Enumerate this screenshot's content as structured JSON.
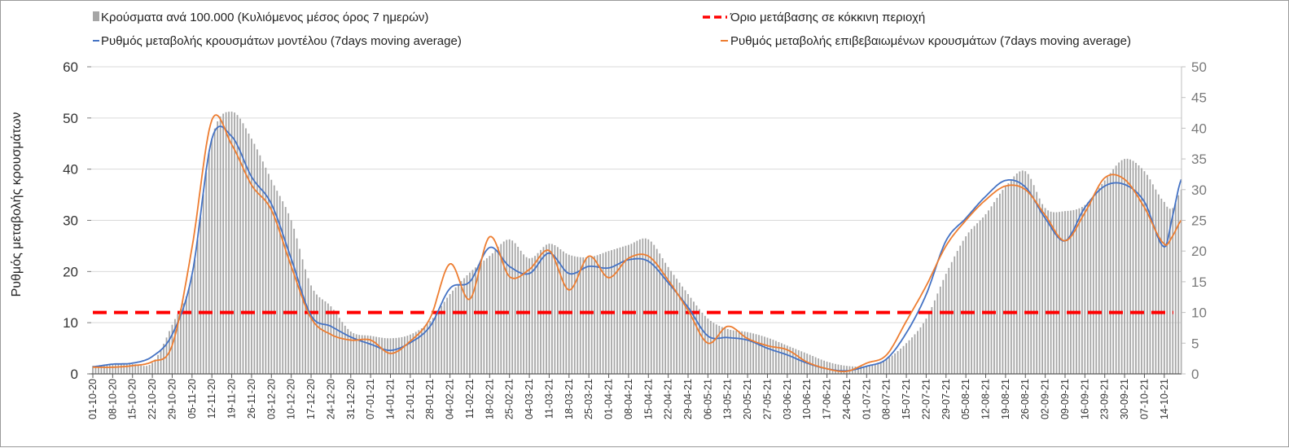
{
  "chart_data": {
    "type": "bar+line",
    "title": "",
    "ylabel": "Ρυθμός μεταβολής κρουσμάτων",
    "ylabel_right": "",
    "ylim": [
      0,
      60
    ],
    "ylim_right": [
      0,
      50
    ],
    "yticks": [
      "0",
      "10",
      "20",
      "30",
      "40",
      "50",
      "60"
    ],
    "yticks_right": [
      "0",
      "5",
      "10",
      "15",
      "20",
      "25",
      "30",
      "35",
      "40",
      "45",
      "50"
    ],
    "grid": true,
    "legend_position": "top",
    "x": [
      "01-10-20",
      "08-10-20",
      "15-10-20",
      "22-10-20",
      "29-10-20",
      "05-11-20",
      "12-11-20",
      "19-11-20",
      "26-11-20",
      "03-12-20",
      "10-12-20",
      "17-12-20",
      "24-12-20",
      "31-12-20",
      "07-01-21",
      "14-01-21",
      "21-01-21",
      "28-01-21",
      "04-02-21",
      "11-02-21",
      "18-02-21",
      "25-02-21",
      "04-03-21",
      "11-03-21",
      "18-03-21",
      "25-03-21",
      "01-04-21",
      "08-04-21",
      "15-04-21",
      "22-04-21",
      "29-04-21",
      "06-05-21",
      "13-05-21",
      "20-05-21",
      "27-05-21",
      "03-06-21",
      "10-06-21",
      "17-06-21",
      "24-06-21",
      "01-07-21",
      "08-07-21",
      "15-07-21",
      "22-07-21",
      "29-07-21",
      "05-08-21",
      "12-08-21",
      "19-08-21",
      "26-08-21",
      "02-09-21",
      "09-09-21",
      "16-09-21",
      "23-09-21",
      "30-09-21",
      "07-10-21",
      "14-10-21"
    ],
    "tail_days_after_last_label": [
      3,
      6
    ],
    "series": [
      {
        "name": "Κρούσματα ανά 100.000 (Κυλιόμενος μέσος όρος 7 ημερών)",
        "type": "bar",
        "axis": "right",
        "color": "#a6a6a6",
        "values": [
          1.3,
          1.5,
          1.6,
          1.8,
          8,
          16,
          38.3,
          42.7,
          38.3,
          31.6,
          25,
          14.4,
          11,
          6.9,
          6.2,
          5.8,
          6.4,
          8.6,
          13,
          16.5,
          19.2,
          21.9,
          18.8,
          21.2,
          19.4,
          19,
          20,
          21,
          21.9,
          17.4,
          13,
          9,
          7.3,
          6.8,
          5.9,
          4.6,
          3.3,
          2,
          1.3,
          1.3,
          2.4,
          5,
          9,
          16.3,
          22.4,
          26,
          30.5,
          33,
          27,
          26.5,
          27.5,
          31.5,
          35,
          33,
          28
        ],
        "tail": [
          27,
          30
        ]
      },
      {
        "name": "Όριο μετάβασης σε κόκκινη περιοχή",
        "type": "threshold",
        "axis": "right",
        "color": "#ff0000",
        "value": 10
      },
      {
        "name": "Ρυθμός μεταβολής κρουσμάτων μοντέλου (7days moving average)",
        "type": "line",
        "axis": "left",
        "color": "#4472c4",
        "values": [
          1.4,
          1.9,
          2.1,
          3.4,
          7.7,
          19.4,
          45.9,
          46.4,
          38.5,
          33.2,
          22.5,
          11.4,
          9.3,
          7.2,
          5.8,
          4.6,
          6.1,
          9.3,
          16.7,
          18,
          24.7,
          21,
          19.6,
          23.6,
          19.6,
          21,
          20.7,
          22.3,
          22,
          17.8,
          13,
          7.4,
          7.1,
          6.6,
          5,
          3.7,
          2.1,
          1.0,
          0.6,
          1.5,
          2.9,
          8,
          15.5,
          26,
          30.4,
          34.7,
          37.8,
          36.5,
          30.4,
          26,
          32.5,
          36.7,
          37,
          33.6,
          24.8
        ],
        "tail": [
          31,
          38
        ]
      },
      {
        "name": "Ρυθμός μεταβολής επιβεβαιωμένων κρουσμάτων (7days moving average)",
        "type": "line",
        "axis": "left",
        "color": "#ed7d31",
        "values": [
          1.3,
          1.3,
          1.6,
          2.4,
          5.6,
          24.7,
          49.6,
          44.8,
          36.9,
          32,
          21,
          10.9,
          7.7,
          6.6,
          6.6,
          4,
          6.4,
          10.9,
          21.5,
          14.6,
          26.8,
          19,
          20.4,
          24.1,
          16.4,
          23,
          18.8,
          22.6,
          23,
          18.3,
          12.4,
          6,
          9.3,
          6.9,
          5.5,
          4.7,
          2.3,
          1.0,
          0.5,
          2.1,
          3.7,
          10.3,
          17.2,
          25,
          30,
          34,
          36.7,
          36,
          31,
          26,
          31.5,
          38.3,
          38,
          32.5,
          25.4
        ],
        "tail": [
          27,
          30
        ]
      }
    ]
  }
}
